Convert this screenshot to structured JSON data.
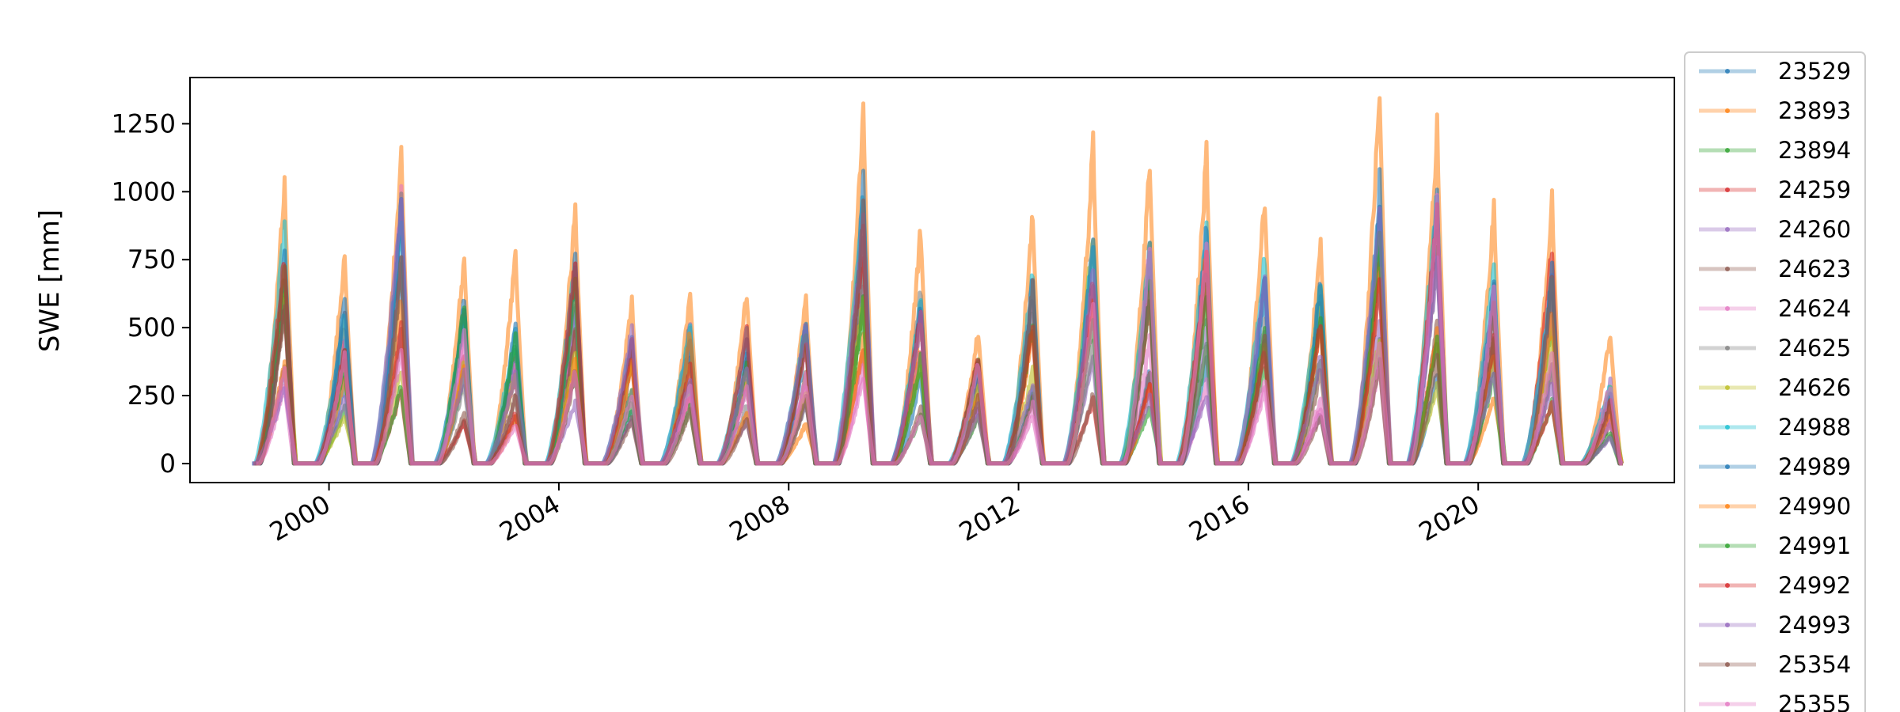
{
  "chart_data": {
    "type": "line",
    "title": "",
    "xlabel": "",
    "ylabel": "SWE [mm]",
    "x_range": [
      "1997-08-01",
      "2023-06-01"
    ],
    "ylim": [
      -70,
      1420
    ],
    "x_ticks": [
      "2000",
      "2004",
      "2008",
      "2012",
      "2016",
      "2020"
    ],
    "y_ticks": [
      0,
      250,
      500,
      750,
      1000,
      1250
    ],
    "grid": false,
    "legend_placement": "outside right",
    "season_peaks": [
      {
        "peak": "1999-03-25",
        "max": 1015,
        "typical": 860
      },
      {
        "peak": "2000-04-10",
        "max": 765,
        "typical": 640
      },
      {
        "peak": "2001-04-05",
        "max": 1155,
        "typical": 1000
      },
      {
        "peak": "2002-05-10",
        "max": 755,
        "typical": 600
      },
      {
        "peak": "2003-04-01",
        "max": 760,
        "typical": 560
      },
      {
        "peak": "2004-04-15",
        "max": 930,
        "typical": 760
      },
      {
        "peak": "2005-04-10",
        "max": 600,
        "typical": 520
      },
      {
        "peak": "2006-04-15",
        "max": 635,
        "typical": 520
      },
      {
        "peak": "2007-04-10",
        "max": 625,
        "typical": 500
      },
      {
        "peak": "2008-04-20",
        "max": 600,
        "typical": 520
      },
      {
        "peak": "2009-04-20",
        "max": 1310,
        "typical": 1050
      },
      {
        "peak": "2010-04-20",
        "max": 860,
        "typical": 640
      },
      {
        "peak": "2011-04-20",
        "max": 495,
        "typical": 400
      },
      {
        "peak": "2012-04-01",
        "max": 905,
        "typical": 700
      },
      {
        "peak": "2013-04-20",
        "max": 1160,
        "typical": 900
      },
      {
        "peak": "2014-04-15",
        "max": 1090,
        "typical": 830
      },
      {
        "peak": "2015-04-10",
        "max": 1120,
        "typical": 920
      },
      {
        "peak": "2016-04-15",
        "max": 975,
        "typical": 800
      },
      {
        "peak": "2017-04-05",
        "max": 805,
        "typical": 700
      },
      {
        "peak": "2018-04-15",
        "max": 1360,
        "typical": 1050
      },
      {
        "peak": "2019-04-15",
        "max": 1225,
        "typical": 1000
      },
      {
        "peak": "2020-04-10",
        "max": 930,
        "typical": 750
      },
      {
        "peak": "2021-04-15",
        "max": 955,
        "typical": 800
      },
      {
        "peak": "2022-04-20",
        "max": 480,
        "typical": 300
      }
    ],
    "series": [
      {
        "name": "23529",
        "color": "#1f77b4"
      },
      {
        "name": "23893",
        "color": "#ff7f0e"
      },
      {
        "name": "23894",
        "color": "#2ca02c"
      },
      {
        "name": "24259",
        "color": "#d62728"
      },
      {
        "name": "24260",
        "color": "#9467bd"
      },
      {
        "name": "24623",
        "color": "#8c564b"
      },
      {
        "name": "24624",
        "color": "#e377c2"
      },
      {
        "name": "24625",
        "color": "#7f7f7f"
      },
      {
        "name": "24626",
        "color": "#bcbd22"
      },
      {
        "name": "24988",
        "color": "#17becf"
      },
      {
        "name": "24989",
        "color": "#1f77b4"
      },
      {
        "name": "24990",
        "color": "#ff7f0e"
      },
      {
        "name": "24991",
        "color": "#2ca02c"
      },
      {
        "name": "24992",
        "color": "#d62728"
      },
      {
        "name": "24993",
        "color": "#9467bd"
      },
      {
        "name": "25354",
        "color": "#8c564b"
      },
      {
        "name": "25355",
        "color": "#e377c2"
      }
    ]
  }
}
